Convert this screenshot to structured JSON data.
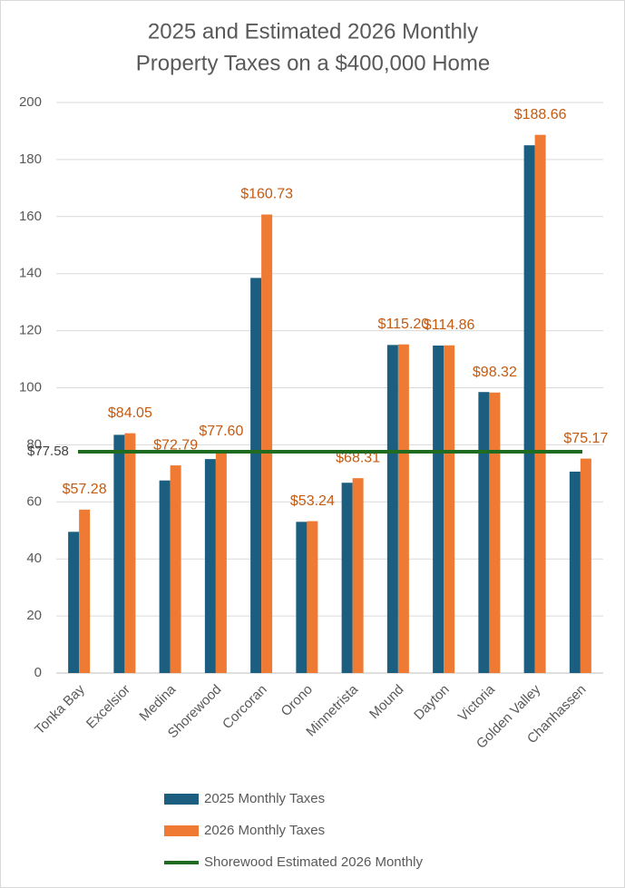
{
  "chart_data": {
    "type": "bar",
    "title": [
      "2025  and Estimated 2026 Monthly",
      "Property Taxes on a $400,000 Home"
    ],
    "categories": [
      "Tonka Bay",
      "Excelsior",
      "Medina",
      "Shorewood",
      "Corcoran",
      "Orono",
      "Minnetrista",
      "Mound",
      "Dayton",
      "Victoria",
      "Golden Valley",
      "Chanhassen"
    ],
    "series": [
      {
        "name": "2025 Monthly Taxes",
        "color": "#1b5e80",
        "values": [
          49.5,
          83.5,
          67.5,
          75,
          138.5,
          53,
          66.7,
          115,
          114.8,
          98.5,
          185,
          70.6
        ]
      },
      {
        "name": "2026 Monthly Taxes",
        "color": "#ef7a33",
        "values": [
          57.28,
          84.05,
          72.79,
          77.6,
          160.73,
          53.24,
          68.31,
          115.2,
          114.86,
          98.32,
          188.66,
          75.17
        ],
        "value_labels": [
          "$57.28",
          "$84.05",
          "$72.79",
          "$77.60",
          "$160.73",
          "$53.24",
          "$68.31",
          "$115.20",
          "$114.86",
          "$98.32",
          "$188.66",
          "$75.17"
        ]
      }
    ],
    "reference_line": {
      "name": "Shorewood Estimated 2026 Monthly",
      "value": 77.58,
      "label": "$77.58",
      "color": "#1f6b1f"
    },
    "ylim": [
      0,
      200
    ],
    "yticks": [
      0,
      20,
      40,
      60,
      80,
      100,
      120,
      140,
      160,
      180,
      200
    ],
    "grid": true
  }
}
